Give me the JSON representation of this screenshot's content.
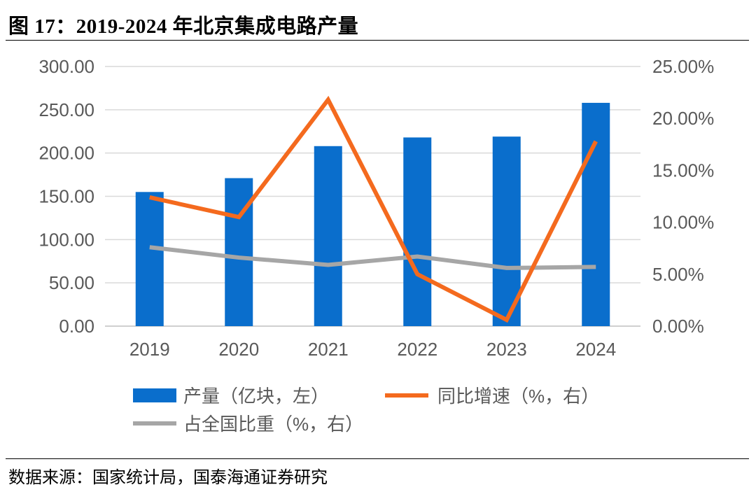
{
  "figure": {
    "title": "图 17：2019-2024 年北京集成电路产量",
    "source": "数据来源：国家统计局，国泰海通证券研究"
  },
  "chart_data": {
    "type": "bar+line",
    "categories": [
      "2019",
      "2020",
      "2021",
      "2022",
      "2023",
      "2024"
    ],
    "series": [
      {
        "name": "产量（亿块，左）",
        "kind": "bar",
        "axis": "left",
        "color": "#0a6ecc",
        "values": [
          155,
          171,
          208,
          218,
          219,
          258
        ]
      },
      {
        "name": "同比增速（%，右）",
        "kind": "line",
        "axis": "right",
        "color": "#f46a1e",
        "values": [
          12.4,
          10.5,
          21.8,
          5.0,
          0.6,
          17.8
        ]
      },
      {
        "name": "占全国比重（%，右）",
        "kind": "line",
        "axis": "right",
        "color": "#a6a6a6",
        "values": [
          7.6,
          6.6,
          5.9,
          6.7,
          5.6,
          5.7
        ]
      }
    ],
    "y_left": {
      "min": 0,
      "max": 300,
      "step": 50,
      "tick_labels": [
        "0.00",
        "50.00",
        "100.00",
        "150.00",
        "200.00",
        "250.00",
        "300.00"
      ]
    },
    "y_right": {
      "min": 0,
      "max": 25,
      "step": 5,
      "tick_labels": [
        "0.00%",
        "5.00%",
        "10.00%",
        "15.00%",
        "20.00%",
        "25.00%"
      ]
    },
    "grid": true,
    "legend_position": "bottom"
  }
}
